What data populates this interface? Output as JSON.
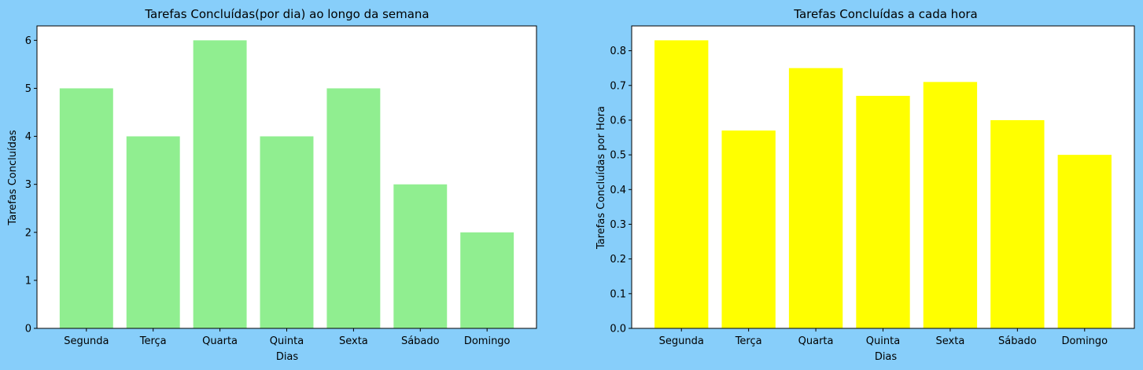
{
  "figure": {
    "background": "#87cefa"
  },
  "chart_data": [
    {
      "type": "bar",
      "title": "Tarefas Concluídas(por dia) ao longo da semana",
      "xlabel": "Dias",
      "ylabel": "Tarefas Concluídas",
      "categories": [
        "Segunda",
        "Terça",
        "Quarta",
        "Quinta",
        "Sexta",
        "Sábado",
        "Domingo"
      ],
      "values": [
        5,
        4,
        6,
        4,
        5,
        3,
        2
      ],
      "ylim": [
        0,
        6.3
      ],
      "yticks": [
        0,
        1,
        2,
        3,
        4,
        5,
        6
      ],
      "ytick_labels": [
        "0",
        "1",
        "2",
        "3",
        "4",
        "5",
        "6"
      ],
      "bar_color": "#90ee90",
      "grid": false
    },
    {
      "type": "bar",
      "title": "Tarefas Concluídas a cada hora",
      "xlabel": "Dias",
      "ylabel": "Tarefas Concluídas por Hora",
      "categories": [
        "Segunda",
        "Terça",
        "Quarta",
        "Quinta",
        "Sexta",
        "Sábado",
        "Domingo"
      ],
      "values": [
        0.83,
        0.57,
        0.75,
        0.67,
        0.71,
        0.6,
        0.5
      ],
      "ylim": [
        0,
        0.8715
      ],
      "yticks": [
        0,
        0.1,
        0.2,
        0.3,
        0.4,
        0.5,
        0.6,
        0.7,
        0.8
      ],
      "ytick_labels": [
        "0.0",
        "0.1",
        "0.2",
        "0.3",
        "0.4",
        "0.5",
        "0.6",
        "0.7",
        "0.8"
      ],
      "bar_color": "#ffff00",
      "grid": false
    }
  ]
}
